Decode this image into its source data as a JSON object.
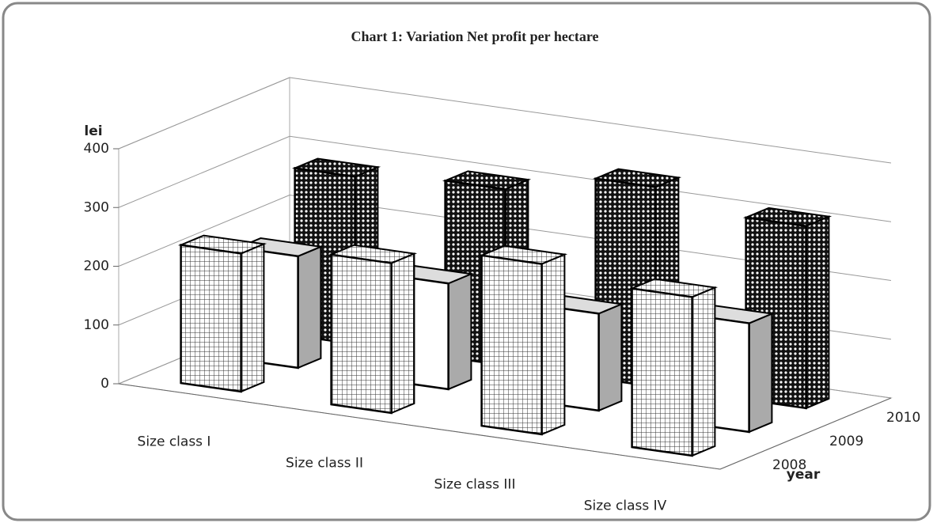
{
  "chart_data": {
    "type": "bar3d",
    "title": "Chart 1: Variation Net profit per hectare",
    "ylabel": "lei",
    "zlabel": "year",
    "categories": [
      "Size class I",
      "Size class  II",
      "Size class    III",
      "Size class    IV"
    ],
    "series": [
      {
        "name": "2008",
        "pattern": "grid",
        "values": [
          235,
          255,
          290,
          270
        ]
      },
      {
        "name": "2009",
        "pattern": "none",
        "values": [
          190,
          180,
          165,
          185
        ]
      },
      {
        "name": "2010",
        "pattern": "diamond",
        "values": [
          285,
          300,
          340,
          310
        ]
      }
    ],
    "ylim": [
      0,
      400
    ],
    "yticks": [
      0,
      100,
      200,
      300,
      400
    ],
    "grid": true
  }
}
